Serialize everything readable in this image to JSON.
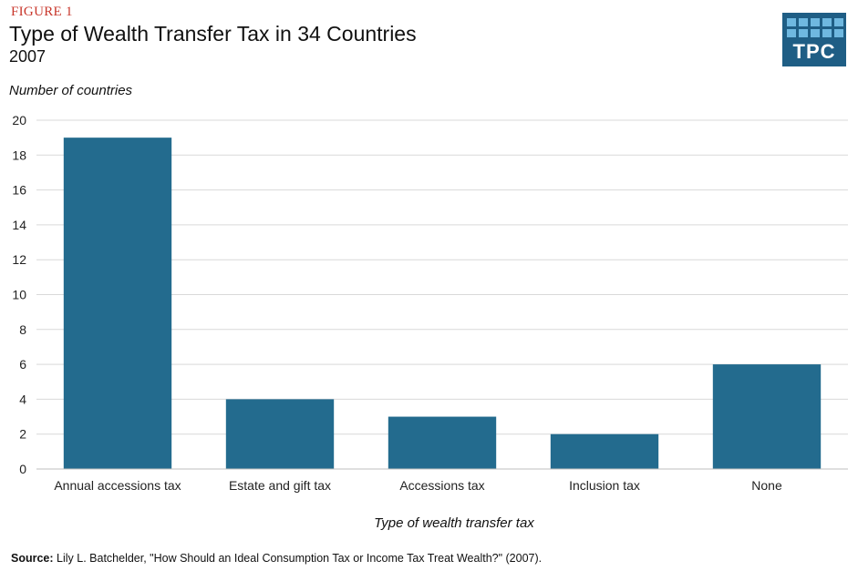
{
  "figure_label": "FIGURE 1",
  "logo": {
    "text": "TPC",
    "accent": "#1f5e85",
    "squares": "#6fb8e0"
  },
  "source": {
    "label": "Source:",
    "text": "Lily L. Batchelder, \"How Should an Ideal Consumption Tax or Income Tax Treat Wealth?\" (2007)."
  },
  "chart_data": {
    "type": "bar",
    "title": "Type of Wealth Transfer Tax in 34 Countries",
    "subtitle": "2007",
    "xlabel": "Type of wealth transfer tax",
    "ylabel": "Number of countries",
    "categories": [
      "Annual accessions tax",
      "Estate and gift tax",
      "Accessions tax",
      "Inclusion tax",
      "None"
    ],
    "values": [
      19,
      4,
      3,
      2,
      6
    ],
    "ylim": [
      0,
      20
    ],
    "yticks": [
      0,
      2,
      4,
      6,
      8,
      10,
      12,
      14,
      16,
      18,
      20
    ],
    "bar_color": "#236b8e",
    "grid": true,
    "legend": "none"
  }
}
